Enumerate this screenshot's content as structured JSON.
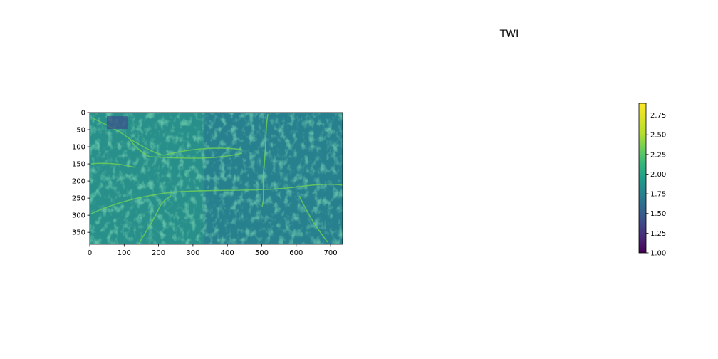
{
  "chart_data": {
    "type": "heatmap",
    "title": "TWI",
    "colormap": "viridis",
    "x_ticks": [
      0,
      100,
      200,
      300,
      400,
      500,
      600,
      700
    ],
    "y_ticks": [
      0,
      50,
      100,
      150,
      200,
      250,
      300,
      350
    ],
    "xlim": [
      0,
      735
    ],
    "ylim": [
      385,
      0
    ],
    "colorbar": {
      "range": [
        1.0,
        2.9
      ],
      "ticks": [
        "1.00",
        "1.25",
        "1.50",
        "1.75",
        "2.00",
        "2.25",
        "2.50",
        "2.75"
      ]
    }
  }
}
